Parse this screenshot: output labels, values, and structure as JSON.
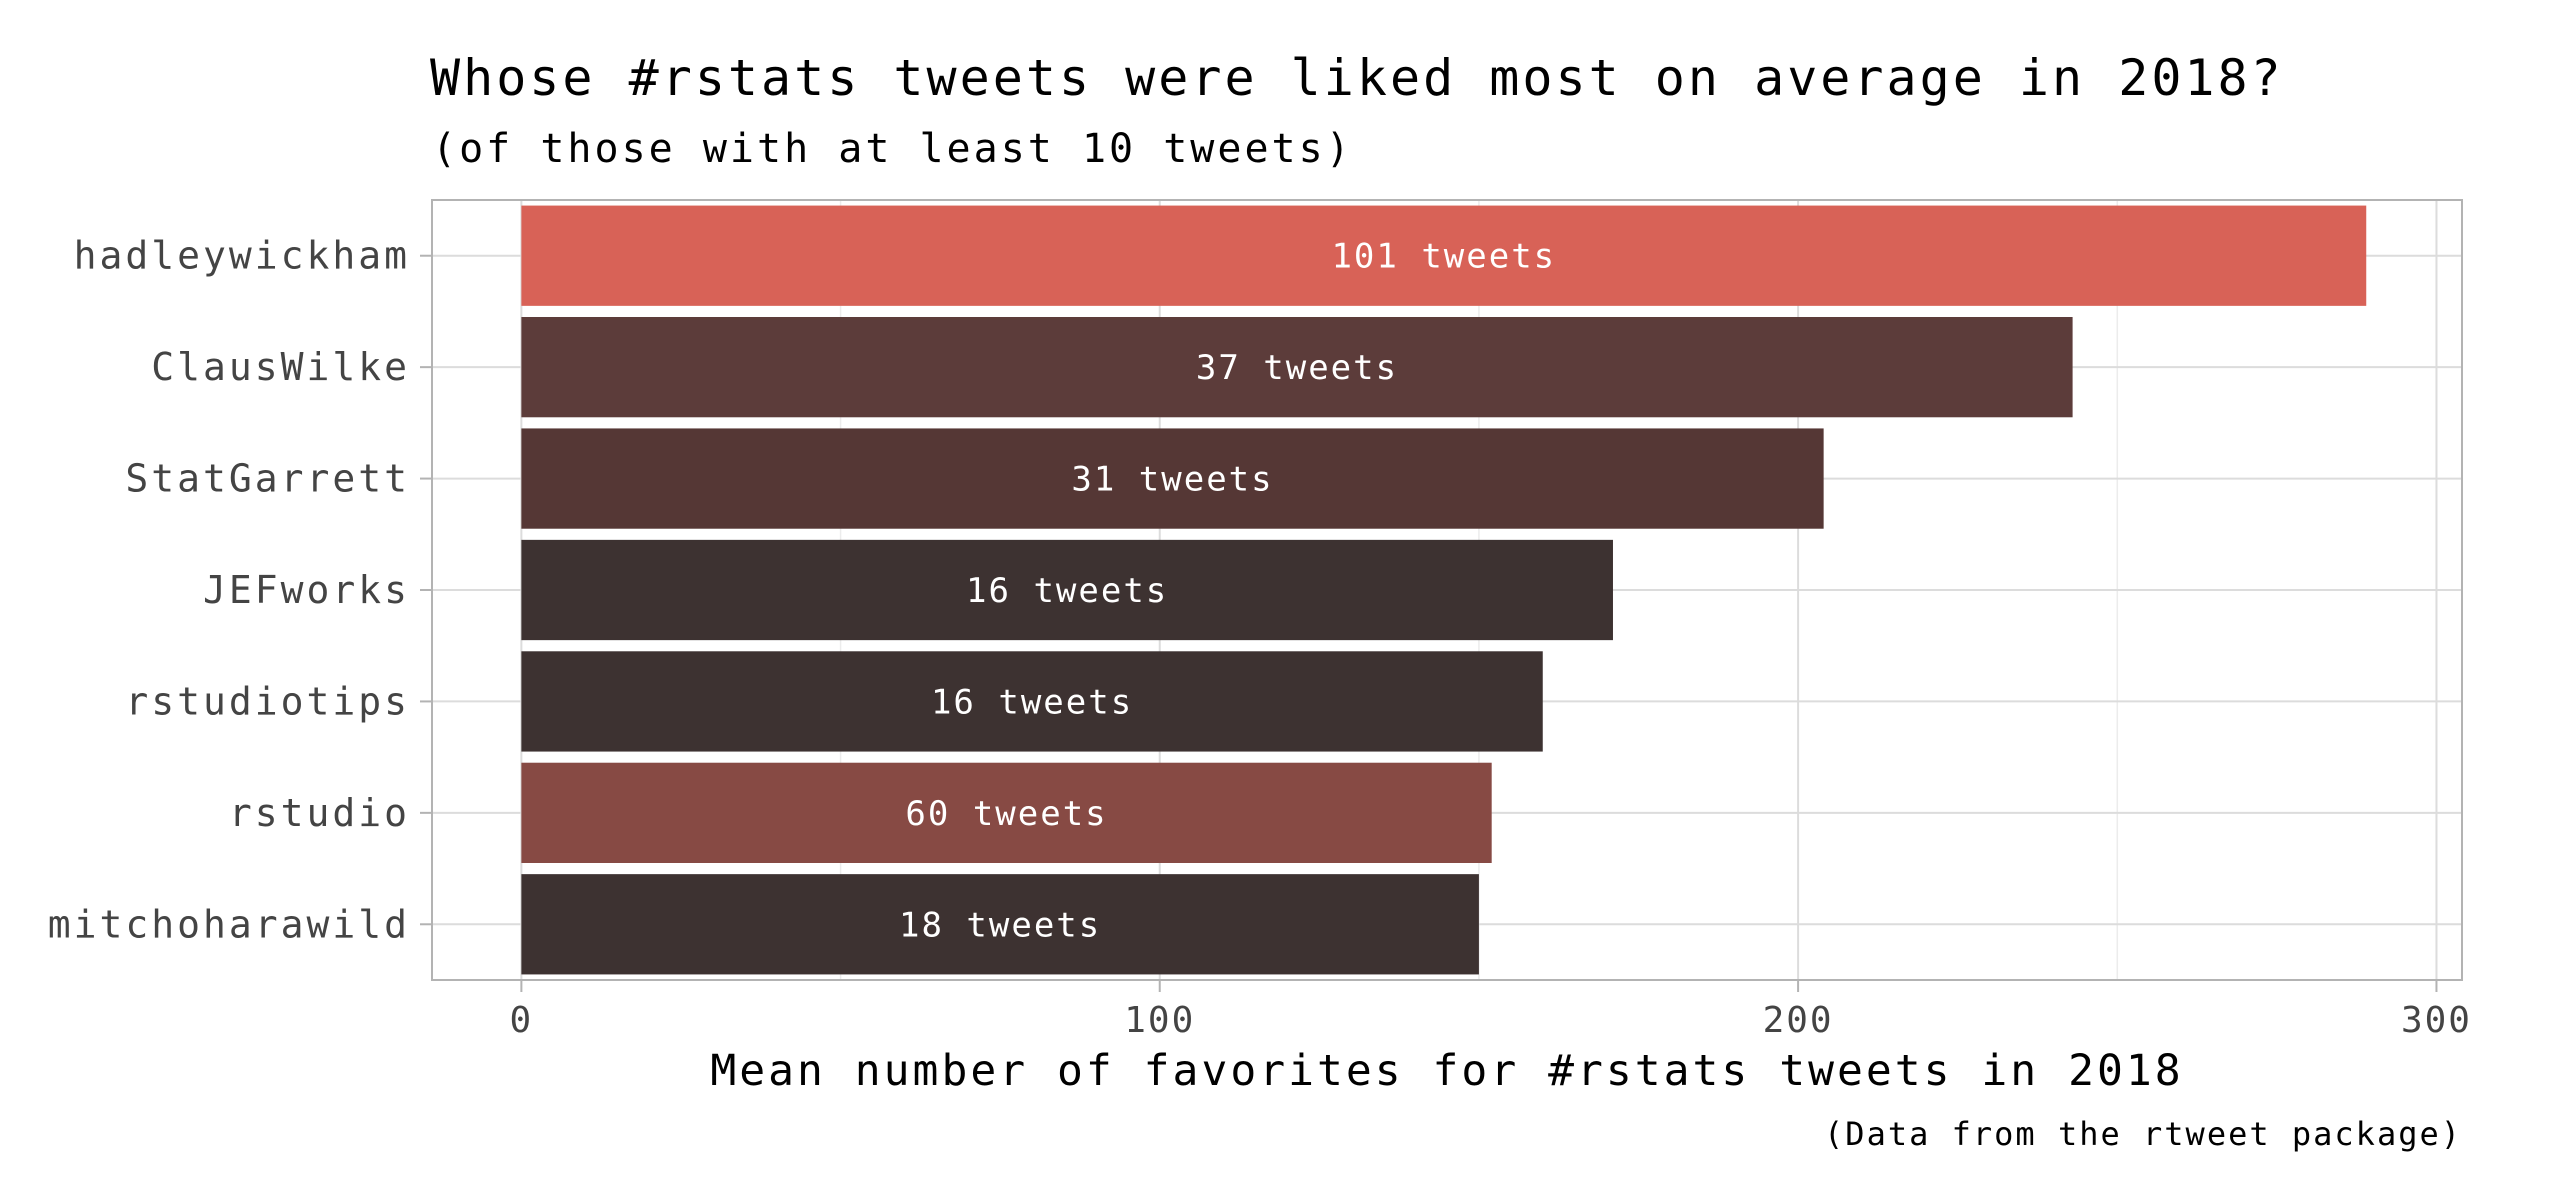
{
  "chart_data": {
    "type": "bar",
    "orientation": "horizontal",
    "title": "Whose #rstats tweets were liked most on average in 2018?",
    "subtitle": "(of those with at least 10 tweets)",
    "xlabel": "Mean number of favorites for #rstats tweets in 2018",
    "ylabel": "",
    "caption": "(Data from the rtweet package)",
    "xlim": [
      -14,
      304
    ],
    "xticks": [
      0,
      100,
      200,
      300
    ],
    "grid": true,
    "legend": "none",
    "categories": [
      "hadleywickham",
      "ClausWilke",
      "StatGarrett",
      "JEFworks",
      "rstudiotips",
      "rstudio",
      "mitchoharawild"
    ],
    "values": [
      289,
      243,
      204,
      171,
      160,
      152,
      150
    ],
    "bar_labels": [
      "101 tweets",
      "37 tweets",
      "31 tweets",
      "16 tweets",
      "16 tweets",
      "60 tweets",
      "18 tweets"
    ],
    "colors": [
      "#d86257",
      "#5c3c3a",
      "#553735",
      "#3d3231",
      "#3d3231",
      "#874a44",
      "#3d3231"
    ]
  }
}
